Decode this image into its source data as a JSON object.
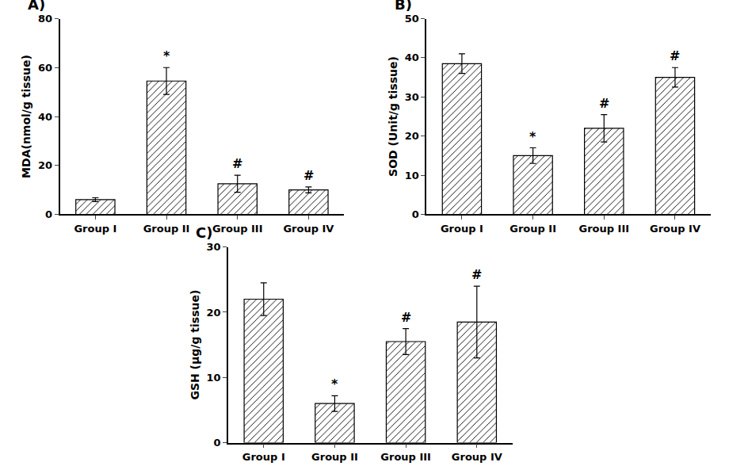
{
  "chart_data": [
    {
      "type": "bar",
      "title": "A)",
      "ylabel": "MDA(nmol/g tissue)",
      "categories": [
        "Group I",
        "Group II",
        "Group III",
        "Group IV"
      ],
      "values": [
        6.0,
        54.5,
        12.5,
        10.0
      ],
      "errors": [
        0.8,
        5.5,
        3.5,
        1.2
      ],
      "ylim": [
        0,
        80
      ],
      "yticks": [
        0,
        20,
        40,
        60,
        80
      ],
      "annotations": [
        {
          "category": "Group II",
          "text": "*"
        },
        {
          "category": "Group III",
          "text": "#"
        },
        {
          "category": "Group IV",
          "text": "#"
        }
      ],
      "color": "#ffffff",
      "grid": false
    },
    {
      "type": "bar",
      "title": "B)",
      "ylabel": "SOD (Unit/g tissue)",
      "categories": [
        "Group I",
        "Group II",
        "Group III",
        "Group IV"
      ],
      "values": [
        38.5,
        15.0,
        22.0,
        35.0
      ],
      "errors": [
        2.5,
        2.0,
        3.5,
        2.5
      ],
      "ylim": [
        0,
        50
      ],
      "yticks": [
        0,
        10,
        20,
        30,
        40,
        50
      ],
      "annotations": [
        {
          "category": "Group II",
          "text": "*"
        },
        {
          "category": "Group III",
          "text": "#"
        },
        {
          "category": "Group IV",
          "text": "#"
        }
      ],
      "color": "#ffffff",
      "grid": false
    },
    {
      "type": "bar",
      "title": "C)",
      "ylabel": "GSH (μg/g tissue)",
      "categories": [
        "Group I",
        "Group II",
        "Group III",
        "Group IV"
      ],
      "values": [
        22.0,
        6.0,
        15.5,
        18.5
      ],
      "errors": [
        2.5,
        1.2,
        2.0,
        5.5
      ],
      "ylim": [
        0,
        30
      ],
      "yticks": [
        0,
        10,
        20,
        30
      ],
      "annotations": [
        {
          "category": "Group II",
          "text": "*"
        },
        {
          "category": "Group III",
          "text": "#"
        },
        {
          "category": "Group IV",
          "text": "#"
        }
      ],
      "color": "#ffffff",
      "grid": false
    }
  ]
}
